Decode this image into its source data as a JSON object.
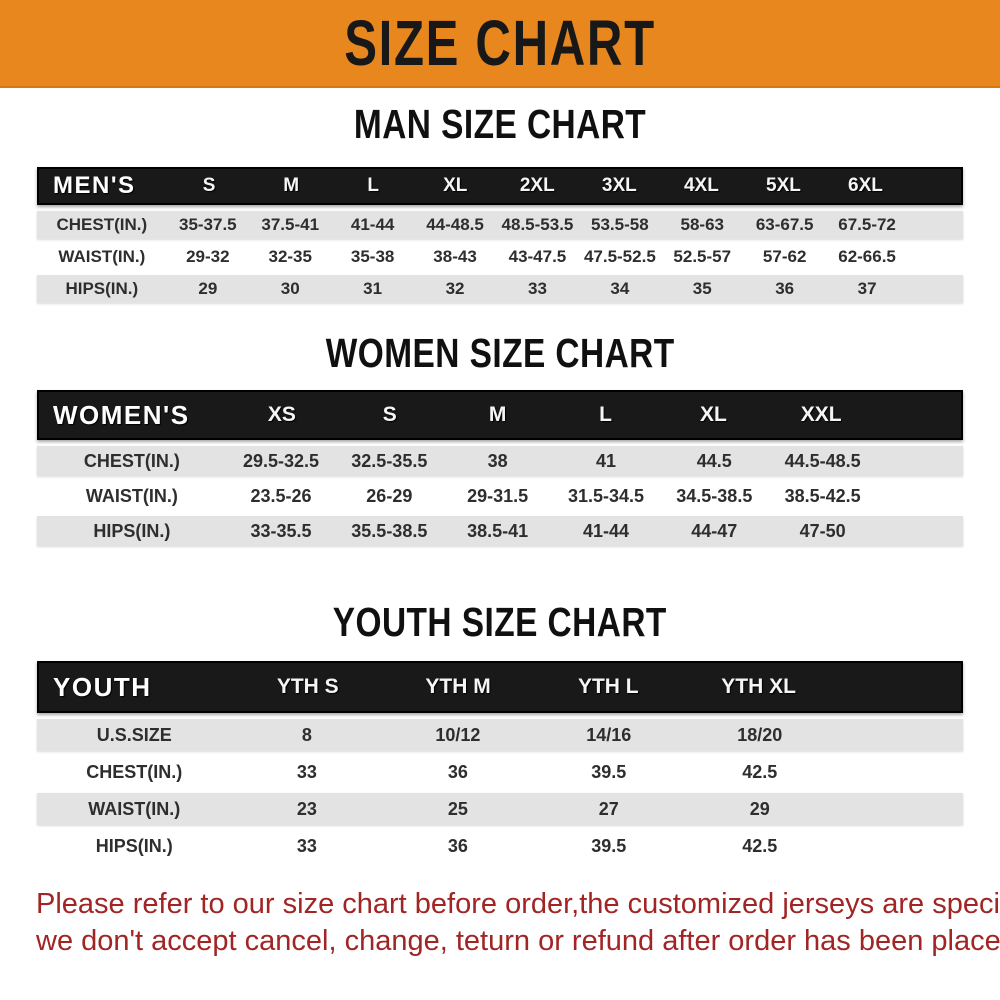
{
  "banner": {
    "title": "SIZE CHART",
    "bg_color": "#E9871F",
    "text_color": "#181818"
  },
  "sections": [
    {
      "title": "MAN SIZE CHART",
      "header_label": "MEN'S",
      "columns": [
        "S",
        "M",
        "L",
        "XL",
        "2XL",
        "3XL",
        "4XL",
        "5XL",
        "6XL"
      ],
      "rows": [
        {
          "label": "CHEST(IN.)",
          "values": [
            "35-37.5",
            "37.5-41",
            "41-44",
            "44-48.5",
            "48.5-53.5",
            "53.5-58",
            "58-63",
            "63-67.5",
            "67.5-72"
          ]
        },
        {
          "label": "WAIST(IN.)",
          "values": [
            "29-32",
            "32-35",
            "35-38",
            "38-43",
            "43-47.5",
            "47.5-52.5",
            "52.5-57",
            "57-62",
            "62-66.5"
          ]
        },
        {
          "label": "HIPS(IN.)",
          "values": [
            "29",
            "30",
            "31",
            "32",
            "33",
            "34",
            "35",
            "36",
            "37"
          ]
        }
      ]
    },
    {
      "title": "WOMEN SIZE CHART",
      "header_label": "WOMEN'S",
      "columns": [
        "XS",
        "S",
        "M",
        "L",
        "XL",
        "XXL"
      ],
      "rows": [
        {
          "label": "CHEST(IN.)",
          "values": [
            "29.5-32.5",
            "32.5-35.5",
            "38",
            "41",
            "44.5",
            "44.5-48.5"
          ]
        },
        {
          "label": "WAIST(IN.)",
          "values": [
            "23.5-26",
            "26-29",
            "29-31.5",
            "31.5-34.5",
            "34.5-38.5",
            "38.5-42.5"
          ]
        },
        {
          "label": "HIPS(IN.)",
          "values": [
            "33-35.5",
            "35.5-38.5",
            "38.5-41",
            "41-44",
            "44-47",
            "47-50"
          ]
        }
      ]
    },
    {
      "title": "YOUTH SIZE CHART",
      "header_label": "YOUTH",
      "columns": [
        "YTH S",
        "YTH M",
        "YTH L",
        "YTH XL"
      ],
      "rows": [
        {
          "label": "U.S.SIZE",
          "values": [
            "8",
            "10/12",
            "14/16",
            "18/20"
          ]
        },
        {
          "label": "CHEST(IN.)",
          "values": [
            "33",
            "36",
            "39.5",
            "42.5"
          ]
        },
        {
          "label": "WAIST(IN.)",
          "values": [
            "23",
            "25",
            "27",
            "29"
          ]
        },
        {
          "label": "HIPS(IN.)",
          "values": [
            "33",
            "36",
            "39.5",
            "42.5"
          ]
        }
      ]
    }
  ],
  "footer_note": {
    "line1": "Please refer to our size chart before order,the customized jerseys are special products,",
    "line2": "we don't accept cancel, change, teturn or refund after order has been placed!",
    "color": "#A12525"
  },
  "table_style": {
    "header_bg": "#191919",
    "gray_row_bg": "#E3E3E3",
    "text_color": "#2e2e2e"
  }
}
